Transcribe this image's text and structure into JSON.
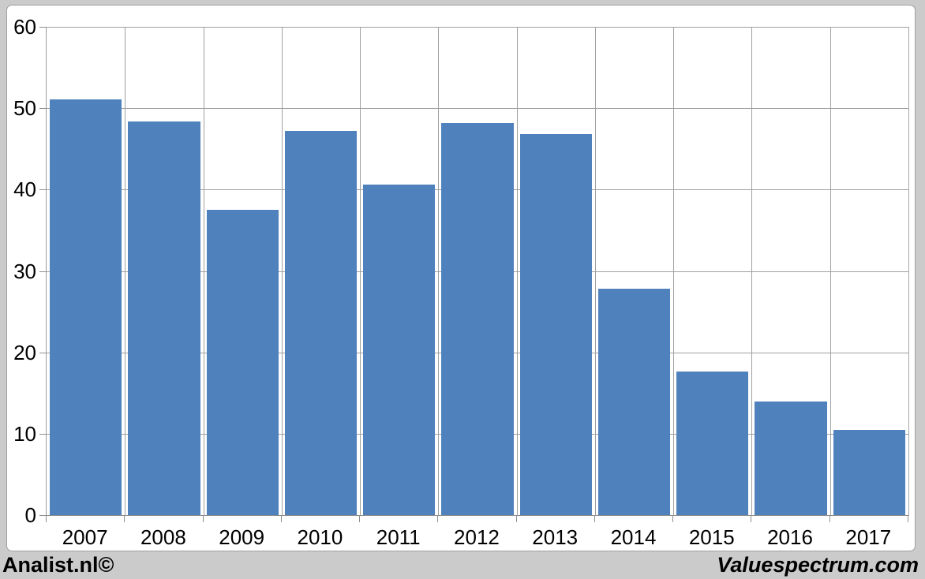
{
  "page": {
    "background": "#cbcbcb"
  },
  "branding": {
    "left": "Analist.nl©",
    "right": "Valuespectrum.com"
  },
  "chart_data": {
    "type": "bar",
    "categories": [
      "2007",
      "2008",
      "2009",
      "2010",
      "2011",
      "2012",
      "2013",
      "2014",
      "2015",
      "2016",
      "2017"
    ],
    "values": [
      51.1,
      48.4,
      37.5,
      47.2,
      40.6,
      48.2,
      46.8,
      27.8,
      17.6,
      14.0,
      10.5
    ],
    "title": "",
    "xlabel": "",
    "ylabel": "",
    "ylim": [
      0,
      60
    ],
    "yticks": [
      0,
      10,
      20,
      30,
      40,
      50,
      60
    ],
    "grid": true,
    "legend": "none",
    "bar_color": "#4f81bd",
    "gridline_color": "#a0a0a0",
    "plot_background": "#ffffff"
  }
}
